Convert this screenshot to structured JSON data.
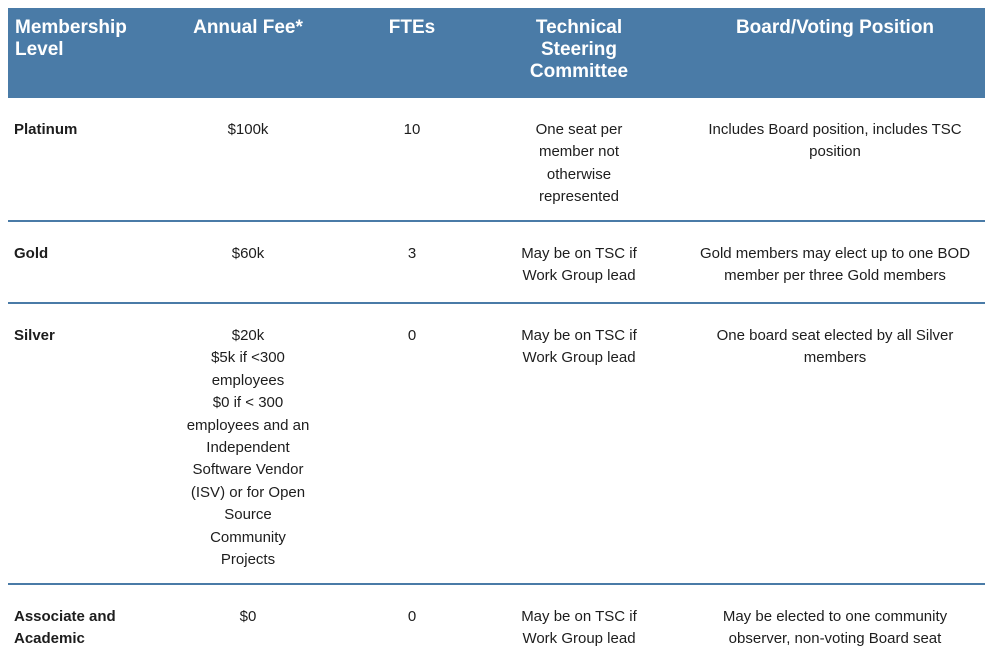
{
  "table": {
    "colors": {
      "header_bg": "#4a7ba7",
      "header_text": "#ffffff",
      "divider": "#4a7ba7",
      "body_text": "#1d1d1d"
    },
    "header": {
      "columns": [
        {
          "label": "Membership\nLevel"
        },
        {
          "label": "Annual Fee*"
        },
        {
          "label": "FTEs"
        },
        {
          "label": "Technical\nSteering\nCommittee"
        },
        {
          "label": "Board/Voting Position"
        }
      ]
    },
    "rows": [
      {
        "cells": [
          "Platinum",
          "$100k",
          "10",
          "One seat per\nmember not\notherwise\nrepresented",
          "Includes Board position, includes TSC\nposition"
        ]
      },
      {
        "cells": [
          "Gold",
          "$60k",
          "3",
          "May be on TSC if\nWork Group lead",
          "Gold members may elect up to one BOD\nmember per three Gold members"
        ]
      },
      {
        "cells": [
          "Silver",
          "$20k\n$5k if <300\nemployees\n$0 if < 300\nemployees and an\nIndependent\nSoftware Vendor\n(ISV) or for Open\nSource\nCommunity\nProjects",
          "0",
          "May be on TSC if\nWork Group lead",
          "One board seat elected by all Silver\nmembers"
        ]
      },
      {
        "cells": [
          "Associate and\nAcademic",
          "$0",
          "0",
          "May be on TSC if\nWork Group lead",
          "May be elected to one community\nobserver, non-voting Board seat"
        ]
      }
    ]
  }
}
